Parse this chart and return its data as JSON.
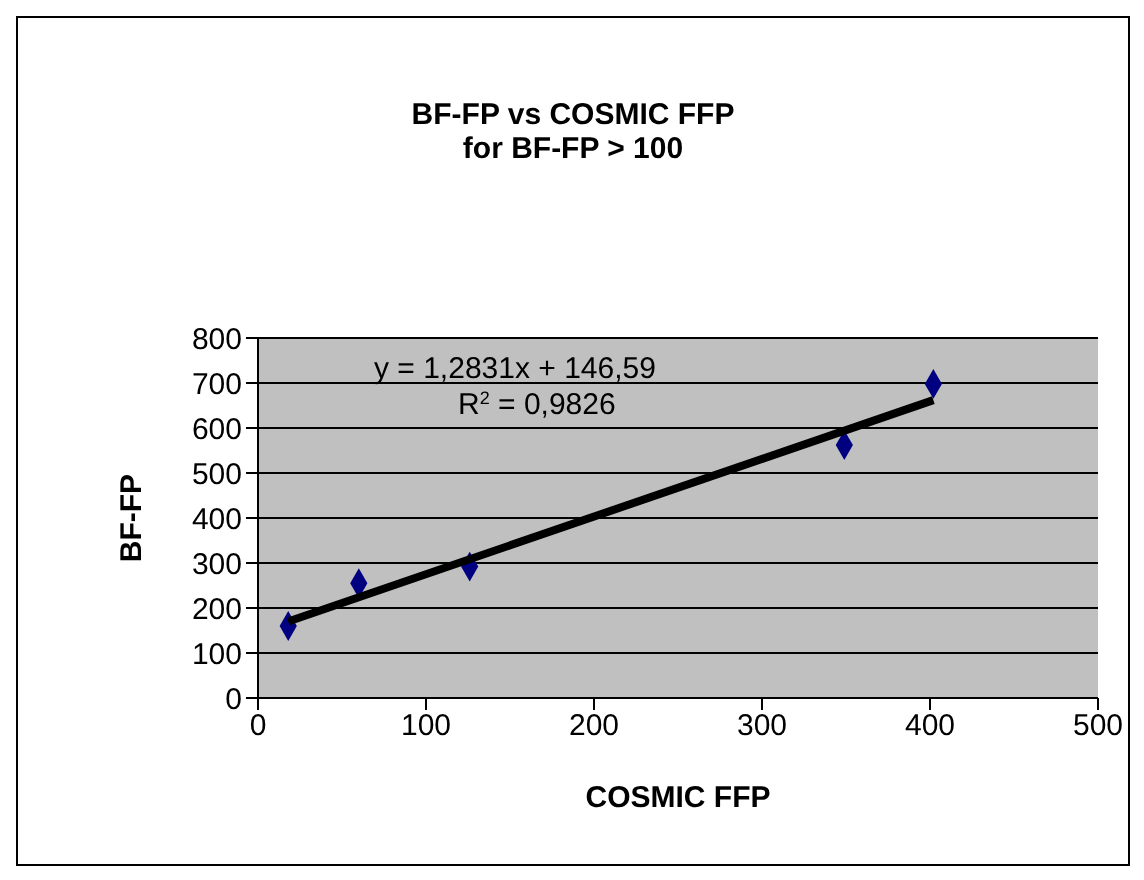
{
  "chart_data": {
    "type": "scatter",
    "title": "BF-FP vs COSMIC FFP",
    "subtitle": "for BF-FP > 100",
    "xlabel": "COSMIC FFP",
    "ylabel": "BF-FP",
    "series": [
      {
        "color": "#000080",
        "marker": "diamond",
        "x": [
          18,
          60,
          126,
          349,
          402
        ],
        "values": [
          160,
          255,
          292,
          562,
          698
        ]
      },
      {
        "type": "line",
        "color": "#000000",
        "marker": "none",
        "x": [
          18,
          402
        ],
        "values": [
          170,
          662
        ]
      }
    ],
    "xlim": [
      0,
      500
    ],
    "xticks": [
      0,
      100,
      200,
      300,
      400,
      500
    ],
    "ylim": [
      0,
      800
    ],
    "yticks": [
      0,
      100,
      200,
      300,
      400,
      500,
      600,
      700,
      800
    ],
    "grid": "y",
    "legend": false,
    "annotations": [
      "y = 1,2831x + 146,59",
      "R$^{2}$ = 0,9826"
    ]
  }
}
